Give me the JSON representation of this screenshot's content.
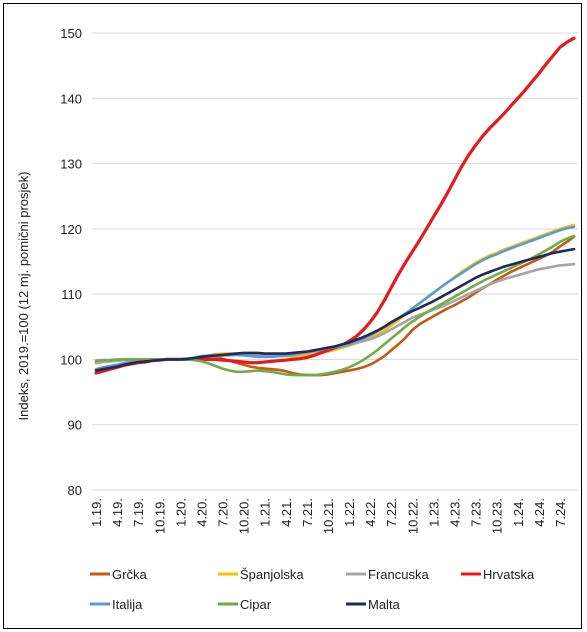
{
  "chart_data": {
    "type": "line",
    "title": "",
    "xlabel": "",
    "ylabel": "Indeks, 2019.=100 (12 mj. pomični prosjek)",
    "ylim": [
      80,
      150
    ],
    "yticks": [
      80,
      90,
      100,
      110,
      120,
      130,
      140,
      150
    ],
    "grid": true,
    "legend_position": "bottom",
    "x": [
      "1.19.",
      "2.19.",
      "3.19.",
      "4.19.",
      "5.19.",
      "6.19.",
      "7.19.",
      "8.19.",
      "9.19.",
      "10.19.",
      "11.19.",
      "12.19.",
      "1.20.",
      "2.20.",
      "3.20.",
      "4.20.",
      "5.20.",
      "6.20.",
      "7.20.",
      "8.20.",
      "9.20.",
      "10.20.",
      "11.20.",
      "12.20.",
      "1.21.",
      "2.21.",
      "3.21.",
      "4.21.",
      "5.21.",
      "6.21.",
      "7.21.",
      "8.21.",
      "9.21.",
      "10.21.",
      "11.21.",
      "12.21.",
      "1.22.",
      "2.22.",
      "3.22.",
      "4.22.",
      "5.22.",
      "6.22.",
      "7.22.",
      "8.22.",
      "9.22.",
      "10.22.",
      "11.22.",
      "12.22.",
      "1.23.",
      "2.23.",
      "3.23.",
      "4.23.",
      "5.23.",
      "6.23.",
      "7.23.",
      "8.23.",
      "9.23.",
      "10.23.",
      "11.23.",
      "12.23.",
      "1.24.",
      "2.24.",
      "3.24.",
      "4.24.",
      "5.24.",
      "6.24.",
      "7.24.",
      "8.24.",
      "9.24."
    ],
    "tick_labels": [
      "1.19.",
      "4.19.",
      "7.19.",
      "10.19.",
      "1.20.",
      "4.20.",
      "7.20.",
      "10.20.",
      "1.21.",
      "4.21.",
      "7.21.",
      "10.21.",
      "1.22.",
      "4.22.",
      "7.22.",
      "10.22.",
      "1.23.",
      "4.23.",
      "7.23.",
      "10.23.",
      "1.24.",
      "4.24.",
      "7.24."
    ],
    "series": [
      {
        "name": "Grčka",
        "color": "#C55A11",
        "values": [
          99.6,
          99.7,
          99.8,
          99.9,
          100.0,
          100.0,
          100.0,
          100.0,
          100.0,
          100.0,
          100.0,
          100.0,
          100.0,
          100.0,
          100.1,
          100.2,
          100.3,
          100.3,
          100.1,
          99.8,
          99.5,
          99.2,
          98.9,
          98.7,
          98.6,
          98.5,
          98.4,
          98.2,
          97.9,
          97.7,
          97.6,
          97.6,
          97.6,
          97.7,
          97.9,
          98.1,
          98.3,
          98.5,
          98.8,
          99.2,
          99.8,
          100.5,
          101.4,
          102.3,
          103.3,
          104.5,
          105.4,
          106.0,
          106.6,
          107.2,
          107.8,
          108.3,
          108.9,
          109.5,
          110.2,
          110.9,
          111.5,
          112.2,
          112.8,
          113.4,
          113.9,
          114.4,
          114.9,
          115.4,
          115.9,
          116.5,
          117.3,
          118.0,
          118.8
        ]
      },
      {
        "name": "Španjolska",
        "color": "#FFC000",
        "values": [
          99.4,
          99.6,
          99.7,
          99.8,
          99.9,
          99.9,
          100.0,
          100.0,
          100.0,
          100.0,
          100.0,
          100.0,
          100.0,
          100.0,
          100.1,
          100.4,
          100.6,
          100.8,
          100.9,
          100.9,
          100.9,
          100.9,
          100.8,
          100.7,
          100.6,
          100.6,
          100.5,
          100.5,
          100.5,
          100.5,
          100.6,
          100.8,
          101.0,
          101.2,
          101.5,
          101.8,
          102.1,
          102.5,
          102.9,
          103.3,
          103.8,
          104.4,
          105.2,
          106.0,
          106.9,
          107.8,
          108.6,
          109.4,
          110.2,
          111.0,
          111.8,
          112.6,
          113.4,
          114.1,
          114.8,
          115.4,
          115.9,
          116.3,
          116.8,
          117.2,
          117.6,
          118.0,
          118.4,
          118.8,
          119.2,
          119.6,
          120.0,
          120.3,
          120.6
        ]
      },
      {
        "name": "Francuska",
        "color": "#A5A5A5",
        "values": [
          99.5,
          99.6,
          99.7,
          99.8,
          99.9,
          99.9,
          100.0,
          100.0,
          100.0,
          100.0,
          100.0,
          100.0,
          100.0,
          100.1,
          100.2,
          100.3,
          100.4,
          100.5,
          100.6,
          100.6,
          100.7,
          100.7,
          100.7,
          100.7,
          100.7,
          100.7,
          100.7,
          100.7,
          100.8,
          100.9,
          101.0,
          101.2,
          101.4,
          101.6,
          101.8,
          102.0,
          102.2,
          102.5,
          102.8,
          103.1,
          103.5,
          104.0,
          104.6,
          105.2,
          105.8,
          106.4,
          106.8,
          107.2,
          107.6,
          108.0,
          108.5,
          109.0,
          109.5,
          110.0,
          110.5,
          111.0,
          111.5,
          111.9,
          112.3,
          112.6,
          112.9,
          113.2,
          113.5,
          113.8,
          114.0,
          114.2,
          114.4,
          114.5,
          114.6
        ]
      },
      {
        "name": "Hrvatska",
        "color": "#E8191C",
        "values": [
          97.9,
          98.2,
          98.5,
          98.8,
          99.1,
          99.3,
          99.5,
          99.6,
          99.8,
          99.9,
          100.0,
          100.0,
          100.0,
          100.0,
          100.0,
          100.0,
          100.0,
          100.0,
          99.9,
          99.8,
          99.7,
          99.6,
          99.5,
          99.5,
          99.6,
          99.7,
          99.8,
          99.9,
          100.0,
          100.1,
          100.3,
          100.6,
          101.0,
          101.4,
          101.8,
          102.2,
          102.8,
          103.5,
          104.5,
          105.7,
          107.2,
          109.0,
          111.0,
          113.0,
          114.8,
          116.5,
          118.2,
          120.0,
          121.8,
          123.6,
          125.5,
          127.5,
          129.5,
          131.3,
          132.8,
          134.2,
          135.4,
          136.5,
          137.6,
          138.8,
          140.0,
          141.2,
          142.5,
          143.8,
          145.2,
          146.5,
          147.8,
          148.6,
          149.2
        ]
      },
      {
        "name": "Italija",
        "color": "#5B9BD5",
        "values": [
          98.5,
          98.8,
          99.0,
          99.2,
          99.4,
          99.6,
          99.7,
          99.8,
          99.9,
          100.0,
          100.0,
          100.0,
          100.0,
          100.1,
          100.3,
          100.5,
          100.6,
          100.7,
          100.7,
          100.7,
          100.7,
          100.6,
          100.5,
          100.4,
          100.4,
          100.4,
          100.5,
          100.6,
          100.7,
          100.9,
          101.1,
          101.3,
          101.5,
          101.7,
          101.9,
          102.1,
          102.4,
          102.8,
          103.2,
          103.7,
          104.3,
          104.9,
          105.6,
          106.3,
          107.0,
          107.8,
          108.6,
          109.4,
          110.2,
          111.0,
          111.8,
          112.5,
          113.2,
          113.9,
          114.6,
          115.2,
          115.7,
          116.1,
          116.6,
          117.0,
          117.4,
          117.8,
          118.2,
          118.6,
          119.0,
          119.4,
          119.8,
          120.1,
          120.3
        ]
      },
      {
        "name": "Cipar",
        "color": "#70AD47",
        "values": [
          99.8,
          99.9,
          99.9,
          100.0,
          100.0,
          100.0,
          100.0,
          100.0,
          100.0,
          100.0,
          100.0,
          100.0,
          100.0,
          100.0,
          99.9,
          99.7,
          99.4,
          99.0,
          98.6,
          98.3,
          98.1,
          98.1,
          98.2,
          98.3,
          98.2,
          98.1,
          97.9,
          97.7,
          97.6,
          97.6,
          97.6,
          97.6,
          97.7,
          97.9,
          98.1,
          98.4,
          98.8,
          99.3,
          99.9,
          100.6,
          101.4,
          102.3,
          103.2,
          104.1,
          105.0,
          105.8,
          106.5,
          107.2,
          107.8,
          108.4,
          109.0,
          109.6,
          110.2,
          110.8,
          111.4,
          112.0,
          112.5,
          113.0,
          113.5,
          114.0,
          114.5,
          115.0,
          115.5,
          116.1,
          116.7,
          117.3,
          118.0,
          118.5,
          118.9
        ]
      },
      {
        "name": "Malta",
        "color": "#1F2A55",
        "values": [
          98.3,
          98.5,
          98.7,
          98.9,
          99.2,
          99.4,
          99.6,
          99.7,
          99.8,
          99.9,
          100.0,
          100.0,
          100.0,
          100.1,
          100.2,
          100.4,
          100.5,
          100.6,
          100.7,
          100.8,
          100.9,
          101.0,
          101.0,
          101.0,
          100.9,
          100.9,
          100.9,
          100.9,
          101.0,
          101.1,
          101.2,
          101.4,
          101.6,
          101.8,
          102.0,
          102.3,
          102.6,
          103.0,
          103.4,
          103.9,
          104.4,
          105.0,
          105.7,
          106.3,
          106.9,
          107.4,
          107.9,
          108.4,
          108.9,
          109.5,
          110.1,
          110.7,
          111.3,
          111.9,
          112.5,
          113.0,
          113.4,
          113.8,
          114.2,
          114.5,
          114.8,
          115.1,
          115.4,
          115.7,
          116.0,
          116.3,
          116.5,
          116.7,
          116.9
        ]
      }
    ]
  }
}
